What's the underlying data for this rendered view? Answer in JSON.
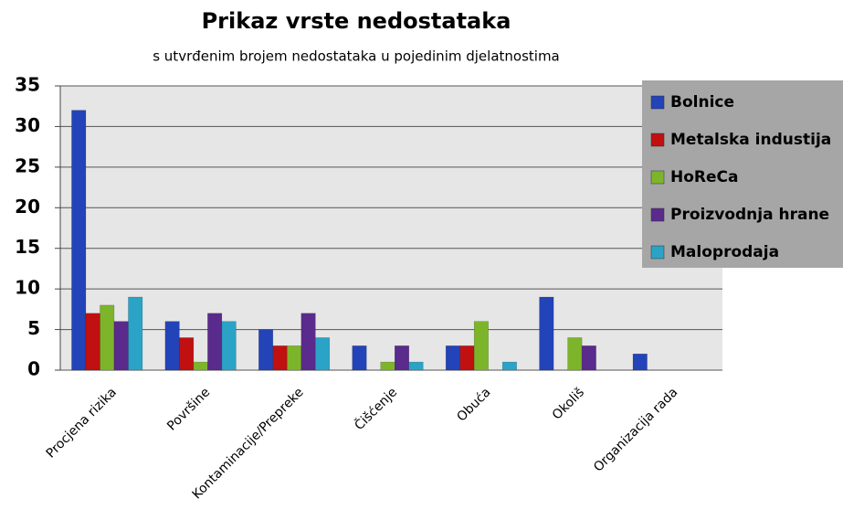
{
  "chart_data": {
    "type": "bar",
    "title": "Prikaz vrste nedostataka",
    "subtitle": "s utvrđenim brojem nedostataka u pojedinim  djelatnostima",
    "categories": [
      "Procjena rizika",
      "Površine",
      "Kontaminacije/Prepreke",
      "Čišćenje",
      "Obuća",
      "Okoliš",
      "Organizacija rada"
    ],
    "series": [
      {
        "name": "Bolnice",
        "color": "#2343b8",
        "values": [
          32,
          6,
          5,
          3,
          3,
          9,
          2
        ]
      },
      {
        "name": "Metalska industija",
        "color": "#c01010",
        "values": [
          7,
          4,
          3,
          0,
          3,
          0,
          0
        ]
      },
      {
        "name": "HoReCa",
        "color": "#7db52a",
        "values": [
          8,
          1,
          3,
          1,
          6,
          4,
          0
        ]
      },
      {
        "name": "Proizvodnja hrane",
        "color": "#5a2a8c",
        "values": [
          6,
          7,
          7,
          3,
          0,
          3,
          0
        ]
      },
      {
        "name": "Maloprodaja",
        "color": "#2aa3c6",
        "values": [
          9,
          6,
          4,
          1,
          1,
          0,
          0
        ]
      }
    ],
    "ylim": [
      0,
      35
    ],
    "yticks": [
      0,
      5,
      10,
      15,
      20,
      25,
      30,
      35
    ],
    "grid": true,
    "legend": "upper right"
  }
}
